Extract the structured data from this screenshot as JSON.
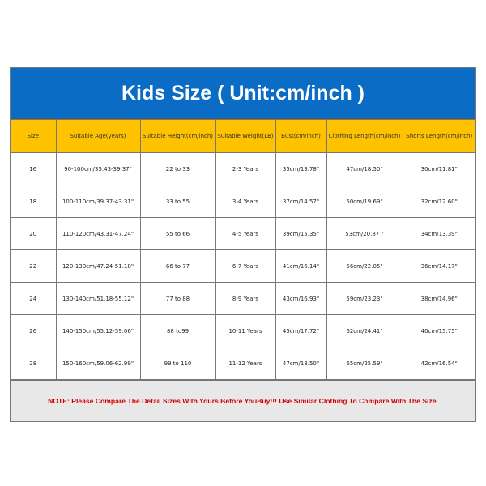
{
  "title": "Kids Size ( Unit:cm/inch )",
  "colors": {
    "title_bg": "#0a6cc4",
    "header_bg": "#fec200",
    "note_bg": "#e8e8e8",
    "note_text": "#d40000"
  },
  "columns": [
    "Size",
    "Suitable Age(years)",
    "Suitable Height(cm/inch)",
    "Suitable Weight(LB)",
    "Bust(cm/inch)",
    "Clothing Length(cm/inch)",
    "Shorts Length(cm/inch)"
  ],
  "rows": [
    [
      "16",
      "90-100cm/35.43-39.37\"",
      "22 to 33",
      "2-3 Years",
      "35cm/13.78\"",
      "47cm/18.50\"",
      "30cm/11.81\""
    ],
    [
      "18",
      "100-110cm/39.37-43.31\"",
      "33 to 55",
      "3-4 Years",
      "37cm/14.57\"",
      "50cm/19.69\"",
      "32cm/12.60\""
    ],
    [
      "20",
      "110-120cm/43.31-47.24\"",
      "55 to 66",
      "4-5 Years",
      "39cm/15.35\"",
      "53cm/20.87 \"",
      "34cm/13.39\""
    ],
    [
      "22",
      "120-130cm/47.24-51.18\"",
      "66 to 77",
      "6-7 Years",
      "41cm/16.14\"",
      "56cm/22.05\"",
      "36cm/14.17\""
    ],
    [
      "24",
      "130-140cm/51.18-55.12\"",
      "77 to 88",
      "8-9 Years",
      "43cm/16.93\"",
      "59cm/23.23\"",
      "38cm/14.96\""
    ],
    [
      "26",
      "140-150cm/55.12-59.06\"",
      "88 to99",
      "10-11 Years",
      "45cm/17.72\"",
      "62cm/24.41\"",
      "40cm/15.75\""
    ],
    [
      "28",
      "150-160cm/59.06-62.99\"",
      "99 to 110",
      "11-12 Years",
      "47cm/18.50\"",
      "65cm/25.59\"",
      "42cm/16.54\""
    ]
  ],
  "note": "NOTE: Please Compare The Detail Sizes With Yours Before YouBuy!!! Use Similar Clothing To Compare With The Size."
}
